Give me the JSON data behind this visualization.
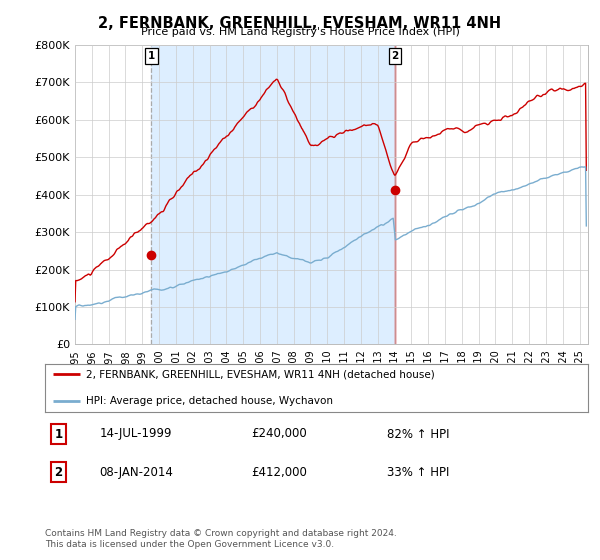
{
  "title": "2, FERNBANK, GREENHILL, EVESHAM, WR11 4NH",
  "subtitle": "Price paid vs. HM Land Registry's House Price Index (HPI)",
  "ylabel_values": [
    "£0",
    "£100K",
    "£200K",
    "£300K",
    "£400K",
    "£500K",
    "£600K",
    "£700K",
    "£800K"
  ],
  "ylim": [
    0,
    800000
  ],
  "xlim_start": 1995.0,
  "xlim_end": 2025.5,
  "red_color": "#cc0000",
  "blue_color": "#7aadcf",
  "shade_color": "#ddeeff",
  "sale1": {
    "date_num": 1999.54,
    "price": 240000,
    "label": "1",
    "date_str": "14-JUL-1999",
    "pct": "82% ↑ HPI"
  },
  "sale2": {
    "date_num": 2014.03,
    "price": 412000,
    "label": "2",
    "date_str": "08-JAN-2014",
    "pct": "33% ↑ HPI"
  },
  "legend_line1": "2, FERNBANK, GREENHILL, EVESHAM, WR11 4NH (detached house)",
  "legend_line2": "HPI: Average price, detached house, Wychavon",
  "footer": "Contains HM Land Registry data © Crown copyright and database right 2024.\nThis data is licensed under the Open Government Licence v3.0.",
  "background_color": "#ffffff",
  "grid_color": "#cccccc"
}
